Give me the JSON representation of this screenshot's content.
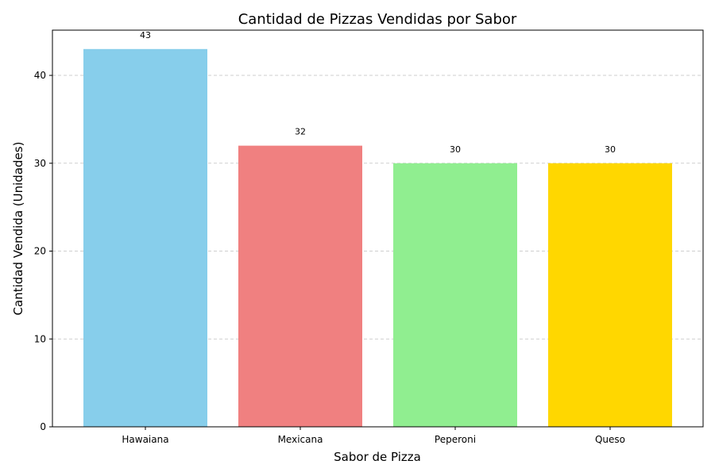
{
  "chart_data": {
    "type": "bar",
    "title": "Cantidad de Pizzas Vendidas por Sabor",
    "xlabel": "Sabor de Pizza",
    "ylabel": "Cantidad Vendida (Unidades)",
    "categories": [
      "Hawaiana",
      "Mexicana",
      "Peperoni",
      "Queso"
    ],
    "values": [
      43,
      32,
      30,
      30
    ],
    "data_labels": [
      "43",
      "32",
      "30",
      "30"
    ],
    "colors": [
      "#87ceeb",
      "#f08080",
      "#90ee90",
      "#ffd700"
    ],
    "ylim": [
      0,
      45.15
    ],
    "yticks": [
      0,
      10,
      20,
      30,
      40
    ],
    "ytick_labels": [
      "0",
      "10",
      "20",
      "30",
      "40"
    ],
    "grid": "y-dashed",
    "grid_color": "#c0c0c0"
  }
}
